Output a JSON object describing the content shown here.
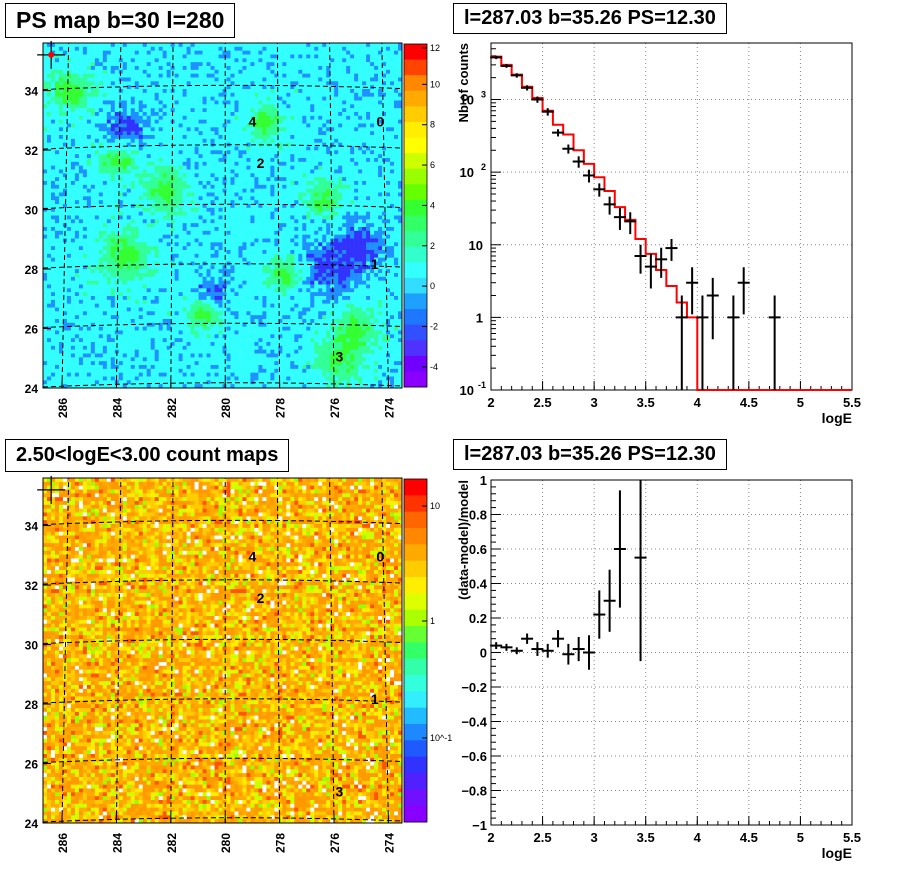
{
  "panels": {
    "top_left_title": "PS map b=30 l=280",
    "top_right_title": "l=287.03 b=35.26 PS=12.30",
    "bottom_left_title": "2.50<logE<3.00 count maps",
    "bottom_right_title": "l=287.03 b=35.26 PS=12.30"
  },
  "colors": {
    "model_line": "#ff0000",
    "data_points": "#000000",
    "map_background_top": "#33ffff",
    "map_background_bottom": "#ff9900"
  },
  "chart_data": [
    {
      "type": "heatmap",
      "title": "PS map b=30 l=280",
      "x_ticks": [
        "286",
        "284",
        "282",
        "280",
        "278",
        "276",
        "274"
      ],
      "y_ticks": [
        "24",
        "26",
        "28",
        "30",
        "32",
        "34"
      ],
      "xlim": [
        286.7,
        273.5
      ],
      "ylim": [
        24,
        35.6
      ],
      "colorbar": {
        "ticks": [
          "12",
          "10",
          "8",
          "6",
          "4",
          "2",
          "0",
          "-2",
          "-4"
        ],
        "range": [
          -5,
          12
        ]
      },
      "sources": [
        {
          "label": "0",
          "l": 274.3,
          "b": 33.0
        },
        {
          "label": "1",
          "l": 274.5,
          "b": 28.2
        },
        {
          "label": "2",
          "l": 278.7,
          "b": 31.6
        },
        {
          "label": "3",
          "l": 275.8,
          "b": 25.1
        },
        {
          "label": "4",
          "l": 279.0,
          "b": 33.0
        }
      ],
      "marker": {
        "l": 286.4,
        "b": 35.2
      }
    },
    {
      "type": "scatter",
      "title": "l=287.03 b=35.26 PS=12.30",
      "xlabel": "logE",
      "ylabel": "Nb of counts",
      "log_y": true,
      "xlim": [
        2,
        5.5
      ],
      "ylim": [
        0.1,
        6000
      ],
      "x_ticks": [
        "2",
        "2.5",
        "3",
        "3.5",
        "4",
        "4.5",
        "5",
        "5.5"
      ],
      "y_ticks": [
        {
          "value": 0.1,
          "label": "10",
          "exp": "-1"
        },
        {
          "value": 1,
          "label": "1",
          "exp": ""
        },
        {
          "value": 10,
          "label": "10",
          "exp": ""
        },
        {
          "value": 100,
          "label": "10",
          "exp": "2"
        },
        {
          "value": 1000,
          "label": "10",
          "exp": "3"
        }
      ],
      "grid": true,
      "model_step": {
        "edges": [
          2.0,
          2.1,
          2.2,
          2.3,
          2.4,
          2.5,
          2.6,
          2.7,
          2.8,
          2.9,
          3.0,
          3.1,
          3.2,
          3.3,
          3.4,
          3.5,
          3.6,
          3.7,
          3.8,
          3.9,
          4.0,
          5.5
        ],
        "values": [
          3900,
          3000,
          2200,
          1500,
          1050,
          700,
          450,
          330,
          200,
          130,
          85,
          55,
          33,
          22,
          12,
          7.5,
          4.5,
          2.7,
          1.6,
          1.0,
          0.1
        ]
      },
      "points": [
        {
          "x": 2.05,
          "y": 3800,
          "err": 200
        },
        {
          "x": 2.15,
          "y": 2900,
          "err": 170
        },
        {
          "x": 2.25,
          "y": 2150,
          "err": 150
        },
        {
          "x": 2.35,
          "y": 1450,
          "err": 120
        },
        {
          "x": 2.45,
          "y": 1000,
          "err": 100
        },
        {
          "x": 2.55,
          "y": 680,
          "err": 80
        },
        {
          "x": 2.65,
          "y": 350,
          "err": 40
        },
        {
          "x": 2.75,
          "y": 210,
          "err": 30
        },
        {
          "x": 2.85,
          "y": 140,
          "err": 25
        },
        {
          "x": 2.95,
          "y": 90,
          "err": 18
        },
        {
          "x": 3.05,
          "y": 58,
          "err": 12
        },
        {
          "x": 3.15,
          "y": 36,
          "err": 10
        },
        {
          "x": 3.25,
          "y": 24,
          "err": 8
        },
        {
          "x": 3.35,
          "y": 21,
          "err": 7
        },
        {
          "x": 3.45,
          "y": 7,
          "err": 3
        },
        {
          "x": 3.55,
          "y": 5,
          "err": 2.5
        },
        {
          "x": 3.65,
          "y": 6.3,
          "err": 2.8
        },
        {
          "x": 3.75,
          "y": 9,
          "err": 3
        },
        {
          "x": 3.85,
          "y": 1,
          "err": 1
        },
        {
          "x": 3.95,
          "y": 3,
          "err": 1.9
        },
        {
          "x": 4.05,
          "y": 1,
          "err": 1
        },
        {
          "x": 4.15,
          "y": 2,
          "err": 1.5
        },
        {
          "x": 4.35,
          "y": 1,
          "err": 1
        },
        {
          "x": 4.45,
          "y": 3,
          "err": 1.9
        },
        {
          "x": 4.75,
          "y": 1,
          "err": 1
        }
      ]
    },
    {
      "type": "heatmap",
      "title": "2.50<logE<3.00 count maps",
      "x_ticks": [
        "286",
        "284",
        "282",
        "280",
        "278",
        "276",
        "274"
      ],
      "y_ticks": [
        "24",
        "26",
        "28",
        "30",
        "32",
        "34"
      ],
      "xlim": [
        286.7,
        273.5
      ],
      "ylim": [
        24,
        35.6
      ],
      "colorbar": {
        "ticks": [
          "10",
          "1",
          "10^-1"
        ],
        "range": "log"
      },
      "sources": [
        {
          "label": "0",
          "l": 274.3,
          "b": 33.0
        },
        {
          "label": "1",
          "l": 274.5,
          "b": 28.2
        },
        {
          "label": "2",
          "l": 278.7,
          "b": 31.6
        },
        {
          "label": "3",
          "l": 275.8,
          "b": 25.1
        },
        {
          "label": "4",
          "l": 279.0,
          "b": 33.0
        }
      ],
      "marker": {
        "l": 286.4,
        "b": 35.2
      }
    },
    {
      "type": "scatter",
      "title": "l=287.03 b=35.26 PS=12.30",
      "xlabel": "logE",
      "ylabel": "(data-model)/model",
      "xlim": [
        2,
        5.5
      ],
      "ylim": [
        -1,
        1
      ],
      "x_ticks": [
        "2",
        "2.5",
        "3",
        "3.5",
        "4",
        "4.5",
        "5",
        "5.5"
      ],
      "y_ticks": [
        "1",
        "0.8",
        "0.6",
        "0.4",
        "0.2",
        "0",
        "−0.2",
        "−0.4",
        "−0.6",
        "−0.8",
        "−1"
      ],
      "grid": true,
      "points": [
        {
          "x": 2.05,
          "y": 0.04,
          "err": 0.02
        },
        {
          "x": 2.15,
          "y": 0.03,
          "err": 0.02
        },
        {
          "x": 2.25,
          "y": 0.01,
          "err": 0.02
        },
        {
          "x": 2.35,
          "y": 0.08,
          "err": 0.03
        },
        {
          "x": 2.45,
          "y": 0.02,
          "err": 0.04
        },
        {
          "x": 2.55,
          "y": 0.01,
          "err": 0.04
        },
        {
          "x": 2.65,
          "y": 0.08,
          "err": 0.05
        },
        {
          "x": 2.75,
          "y": -0.01,
          "err": 0.06
        },
        {
          "x": 2.85,
          "y": 0.02,
          "err": 0.07
        },
        {
          "x": 2.95,
          "y": 0.0,
          "err": 0.1
        },
        {
          "x": 3.05,
          "y": 0.22,
          "err": 0.14
        },
        {
          "x": 3.15,
          "y": 0.3,
          "err": 0.18
        },
        {
          "x": 3.25,
          "y": 0.6,
          "err": 0.34
        },
        {
          "x": 3.45,
          "y": 0.55,
          "err": 0.6
        }
      ]
    }
  ]
}
